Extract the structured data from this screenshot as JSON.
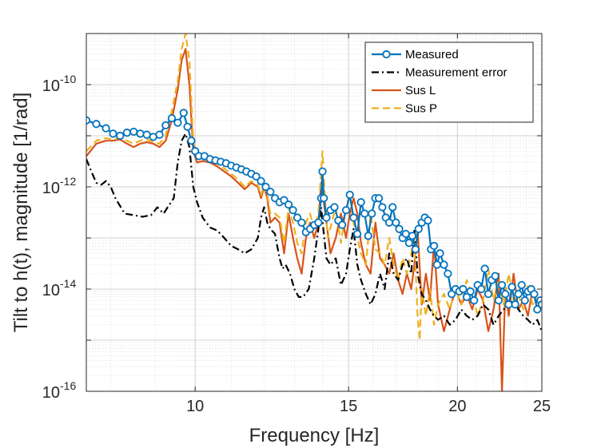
{
  "chart_data": {
    "type": "line",
    "title": "",
    "xlabel": "Frequency [Hz]",
    "ylabel": "Tilt to h(t), magnitude [1/rad]",
    "xscale": "log",
    "yscale": "log",
    "xlim": [
      7.5,
      25
    ],
    "ylim": [
      1e-16,
      1e-09
    ],
    "xticks": [
      10,
      15,
      20,
      25
    ],
    "xtick_labels": [
      "10",
      "15",
      "20",
      "25"
    ],
    "yticks": [
      1e-16,
      1e-14,
      1e-12,
      1e-10
    ],
    "ytick_base": "10",
    "ytick_exponents": [
      "-16",
      "-14",
      "-12",
      "-10"
    ],
    "grid": "major and minor",
    "legend_position": "top-right",
    "series": [
      {
        "name": "Measured",
        "color": "#0072BD",
        "style": "solid-circles",
        "x": [
          7.5,
          7.7,
          7.9,
          8.05,
          8.2,
          8.35,
          8.5,
          8.65,
          8.8,
          8.95,
          9.1,
          9.25,
          9.4,
          9.55,
          9.7,
          9.8,
          9.9,
          10.0,
          10.1,
          10.25,
          10.4,
          10.55,
          10.7,
          10.85,
          11.0,
          11.15,
          11.3,
          11.45,
          11.6,
          11.75,
          11.9,
          12.05,
          12.2,
          12.35,
          12.5,
          12.65,
          12.8,
          12.95,
          13.1,
          13.25,
          13.4,
          13.55,
          13.7,
          13.85,
          13.95,
          14.0,
          14.05,
          14.15,
          14.3,
          14.45,
          14.6,
          14.75,
          14.9,
          15.05,
          15.2,
          15.35,
          15.5,
          15.65,
          15.8,
          15.95,
          16.1,
          16.25,
          16.4,
          16.55,
          16.7,
          16.85,
          17.0,
          17.15,
          17.3,
          17.45,
          17.6,
          17.75,
          17.9,
          18.05,
          18.2,
          18.35,
          18.5,
          18.65,
          18.8,
          18.95,
          19.1,
          19.3,
          19.5,
          19.7,
          19.9,
          20.1,
          20.3,
          20.5,
          20.7,
          20.9,
          21.1,
          21.3,
          21.5,
          21.7,
          21.9,
          22.1,
          22.3,
          22.5,
          22.7,
          22.9,
          23.1,
          23.3,
          23.5,
          23.7,
          23.9,
          24.1,
          24.3,
          24.5,
          24.7,
          24.9,
          25.0
        ],
        "y": [
          2e-11,
          1.7e-11,
          1.4e-11,
          1.1e-11,
          1e-11,
          1.15e-11,
          1.2e-11,
          1.1e-11,
          1.05e-11,
          9.5e-12,
          1.05e-11,
          1.6e-11,
          2.2e-11,
          1.8e-11,
          2.8e-11,
          1.5e-11,
          8e-12,
          5e-12,
          4e-12,
          4e-12,
          3.5e-12,
          3.3e-12,
          3.1e-12,
          2.9e-12,
          2.6e-12,
          2.4e-12,
          2.2e-12,
          2e-12,
          1.8e-12,
          1.6e-12,
          1.3e-12,
          1e-12,
          8e-13,
          6e-13,
          5e-13,
          5.5e-13,
          4.5e-13,
          3.5e-13,
          2.5e-13,
          2e-13,
          1.3e-13,
          1.5e-13,
          1.8e-13,
          2e-13,
          6e-13,
          2e-12,
          6e-13,
          2.5e-13,
          3.5e-13,
          4e-13,
          2.2e-13,
          1.8e-13,
          3.5e-13,
          7e-13,
          2.5e-13,
          1.2e-13,
          5e-13,
          3e-13,
          1.1e-13,
          3e-13,
          6e-13,
          6e-13,
          4e-13,
          2.5e-13,
          2e-13,
          4e-13,
          2e-13,
          1.5e-13,
          1e-13,
          1.2e-13,
          8e-14,
          1.1e-13,
          6e-14,
          1.5e-13,
          2e-13,
          2.5e-13,
          2.2e-13,
          6e-14,
          7e-14,
          3e-14,
          5e-14,
          3e-14,
          2e-14,
          8e-15,
          1e-14,
          9e-15,
          1e-14,
          7e-15,
          9e-15,
          6e-15,
          1.2e-14,
          1e-14,
          2.5e-14,
          8e-15,
          1.5e-14,
          1.8e-14,
          6e-15,
          1.2e-14,
          8e-15,
          5e-15,
          1.1e-14,
          5e-15,
          8e-15,
          1.2e-14,
          6e-15,
          9e-15,
          1e-14,
          8e-15,
          4e-15,
          6e-15,
          5e-15
        ]
      },
      {
        "name": "Measurement error",
        "color": "#000000",
        "style": "dash-dot",
        "x": [
          7.5,
          7.6,
          7.7,
          7.8,
          7.9,
          8.0,
          8.1,
          8.3,
          8.5,
          8.7,
          8.9,
          9.05,
          9.2,
          9.3,
          9.45,
          9.55,
          9.65,
          9.75,
          9.85,
          9.95,
          10.05,
          10.2,
          10.4,
          10.6,
          10.8,
          11.0,
          11.2,
          11.4,
          11.6,
          11.8,
          11.9,
          12.0,
          12.1,
          12.2,
          12.35,
          12.5,
          12.6,
          12.7,
          12.85,
          13.0,
          13.15,
          13.3,
          13.5,
          13.7,
          13.85,
          13.95,
          14.05,
          14.15,
          14.3,
          14.5,
          14.7,
          14.9,
          15.05,
          15.2,
          15.35,
          15.5,
          15.7,
          15.9,
          16.1,
          16.3,
          16.5,
          16.7,
          16.9,
          17.1,
          17.3,
          17.5,
          17.7,
          17.85,
          18.0,
          18.2,
          18.4,
          18.6,
          18.8,
          19.0,
          19.3,
          19.6,
          19.9,
          20.2,
          20.5,
          20.8,
          21.1,
          21.4,
          21.7,
          22.0,
          22.3,
          22.6,
          22.9,
          23.2,
          23.5,
          23.8,
          24.1,
          24.4,
          24.7,
          25.0
        ],
        "y": [
          3.5e-12,
          2e-12,
          1.2e-12,
          1.1e-12,
          1.3e-12,
          1e-12,
          6e-13,
          3e-13,
          2.8e-13,
          2.6e-13,
          2.8e-13,
          4e-13,
          3e-13,
          4e-13,
          6e-13,
          3e-12,
          8e-12,
          1.1e-11,
          6e-12,
          1e-12,
          5e-13,
          2.5e-13,
          1.6e-13,
          1.4e-13,
          1e-13,
          7e-14,
          6e-14,
          5e-14,
          6e-14,
          1e-13,
          2.5e-13,
          4e-13,
          2e-13,
          1.5e-13,
          1.2e-13,
          4e-14,
          2.5e-14,
          3e-14,
          2e-14,
          1e-14,
          7e-15,
          7e-15,
          1e-14,
          4e-14,
          1.5e-13,
          4e-13,
          1.2e-13,
          4e-14,
          3e-14,
          4e-14,
          1.2e-14,
          2e-14,
          6e-14,
          1.5e-13,
          3e-14,
          1.5e-14,
          8e-15,
          5e-15,
          8e-15,
          2e-14,
          1e-14,
          5e-14,
          2e-14,
          1.5e-14,
          3e-14,
          4e-14,
          2e-14,
          1.5e-13,
          2e-14,
          8e-15,
          6e-15,
          4e-15,
          3e-15,
          2.5e-15,
          3e-15,
          2e-15,
          2.5e-15,
          4e-15,
          3e-15,
          2.5e-15,
          3e-15,
          5e-15,
          4e-15,
          2e-15,
          3e-15,
          4e-15,
          5e-15,
          6e-15,
          4e-15,
          3e-15,
          2.5e-15,
          2e-15,
          2.5e-15,
          1.5e-15
        ]
      },
      {
        "name": "Sus L",
        "color": "#D95319",
        "style": "solid",
        "x": [
          7.5,
          7.7,
          7.9,
          8.05,
          8.2,
          8.35,
          8.5,
          8.65,
          8.8,
          8.95,
          9.1,
          9.25,
          9.4,
          9.55,
          9.65,
          9.75,
          9.85,
          9.95,
          10.05,
          10.2,
          10.4,
          10.6,
          10.8,
          11.0,
          11.2,
          11.4,
          11.6,
          11.8,
          11.9,
          12.0,
          12.1,
          12.2,
          12.35,
          12.5,
          12.65,
          12.8,
          12.95,
          13.1,
          13.25,
          13.4,
          13.55,
          13.7,
          13.85,
          13.95,
          14.05,
          14.15,
          14.3,
          14.5,
          14.7,
          14.9,
          15.05,
          15.2,
          15.35,
          15.5,
          15.7,
          15.9,
          16.1,
          16.3,
          16.5,
          16.7,
          16.9,
          17.1,
          17.3,
          17.5,
          17.7,
          17.85,
          18.0,
          18.2,
          18.4,
          18.6,
          18.8,
          19.0,
          19.3,
          19.6,
          19.9,
          20.2,
          20.5,
          20.8,
          21.1,
          21.4,
          21.7,
          22.0,
          22.3,
          22.5,
          22.7,
          22.9,
          23.2,
          23.5,
          23.8,
          24.1,
          24.4,
          24.7,
          25.0
        ],
        "y": [
          4e-12,
          7e-12,
          8e-12,
          8e-12,
          8.5e-12,
          7e-12,
          6e-12,
          7e-12,
          7.5e-12,
          7e-12,
          6e-12,
          8e-12,
          2e-11,
          8e-11,
          3e-10,
          5e-10,
          1e-10,
          5e-12,
          3e-12,
          3.2e-12,
          3e-12,
          2.5e-12,
          2e-12,
          1.6e-12,
          1.2e-12,
          9e-13,
          1.2e-12,
          1e-12,
          6e-13,
          1e-12,
          6e-13,
          2e-13,
          2.5e-13,
          2e-13,
          5e-14,
          3e-13,
          1e-13,
          4e-14,
          2e-14,
          1e-13,
          2e-13,
          1e-13,
          2e-13,
          1.2e-12,
          5e-13,
          2e-13,
          5e-14,
          1e-13,
          3e-13,
          1e-13,
          3e-13,
          6e-13,
          3e-13,
          8e-14,
          3e-14,
          2e-14,
          2e-13,
          4e-14,
          3e-14,
          2e-14,
          5e-14,
          1.5e-14,
          8e-15,
          2e-14,
          1e-14,
          3e-14,
          1.5e-13,
          5e-15,
          2e-14,
          6e-15,
          8e-14,
          5e-15,
          1.5e-15,
          4e-15,
          1e-14,
          5e-15,
          8e-15,
          4e-15,
          1e-14,
          6e-15,
          1.5e-15,
          4e-15,
          2e-14,
          1e-16,
          1e-14,
          3e-15,
          2e-14,
          4e-15,
          6e-15,
          3e-15,
          1e-14,
          4e-15,
          6e-15
        ]
      },
      {
        "name": "Sus P",
        "color": "#EDB120",
        "style": "dashed",
        "x": [
          7.5,
          7.7,
          7.9,
          8.05,
          8.2,
          8.35,
          8.5,
          8.65,
          8.8,
          8.95,
          9.1,
          9.25,
          9.4,
          9.55,
          9.65,
          9.75,
          9.85,
          9.95,
          10.05,
          10.2,
          10.4,
          10.6,
          10.8,
          11.0,
          11.2,
          11.4,
          11.6,
          11.8,
          11.9,
          12.0,
          12.1,
          12.2,
          12.35,
          12.5,
          12.65,
          12.8,
          12.95,
          13.1,
          13.25,
          13.4,
          13.55,
          13.7,
          13.85,
          13.95,
          14.0,
          14.1,
          14.2,
          14.35,
          14.5,
          14.7,
          14.9,
          15.05,
          15.2,
          15.35,
          15.5,
          15.7,
          15.9,
          16.1,
          16.3,
          16.5,
          16.7,
          16.9,
          17.1,
          17.3,
          17.5,
          17.7,
          17.85,
          18.0,
          18.1,
          18.2,
          18.4,
          18.6,
          18.8,
          19.0,
          19.3,
          19.6,
          19.9,
          20.2,
          20.5,
          20.8,
          21.1,
          21.4,
          21.7,
          22.0,
          22.3,
          22.6,
          22.9,
          23.2,
          23.5,
          23.8,
          24.1,
          24.4,
          24.7,
          25.0
        ],
        "y": [
          5e-12,
          8e-12,
          9e-12,
          8.5e-12,
          9e-12,
          8e-12,
          7e-12,
          8e-12,
          8.5e-12,
          7.5e-12,
          7e-12,
          1e-11,
          3e-11,
          1.2e-10,
          5e-10,
          1e-09,
          3e-10,
          8e-12,
          4e-12,
          3.5e-12,
          3.3e-12,
          2.8e-12,
          2.3e-12,
          1.8e-12,
          1.4e-12,
          1e-12,
          1.3e-12,
          1.1e-12,
          7e-13,
          1.1e-12,
          7e-13,
          3e-13,
          3e-13,
          2.5e-13,
          8e-14,
          4e-13,
          2e-13,
          8e-14,
          5e-14,
          2e-13,
          3e-13,
          1.5e-13,
          3e-13,
          2e-12,
          5e-12,
          5e-13,
          1e-13,
          2e-13,
          4e-13,
          8e-14,
          4e-13,
          7e-13,
          2e-13,
          1e-13,
          5e-14,
          3e-14,
          3e-13,
          6e-14,
          5e-14,
          3e-14,
          1e-13,
          3e-14,
          1.5e-14,
          4e-14,
          2e-14,
          5e-14,
          1e-13,
          3e-15,
          1e-15,
          1e-14,
          3e-15,
          1e-14,
          2e-15,
          5e-15,
          8e-15,
          4e-15,
          1e-14,
          5e-15,
          1.5e-14,
          8e-15,
          3e-15,
          6e-15,
          2.5e-14,
          6e-15,
          1.5e-14,
          5e-15,
          2e-14,
          6e-15,
          8e-15,
          4e-15,
          1.2e-14,
          5e-15,
          8e-15,
          4e-15
        ]
      }
    ]
  }
}
